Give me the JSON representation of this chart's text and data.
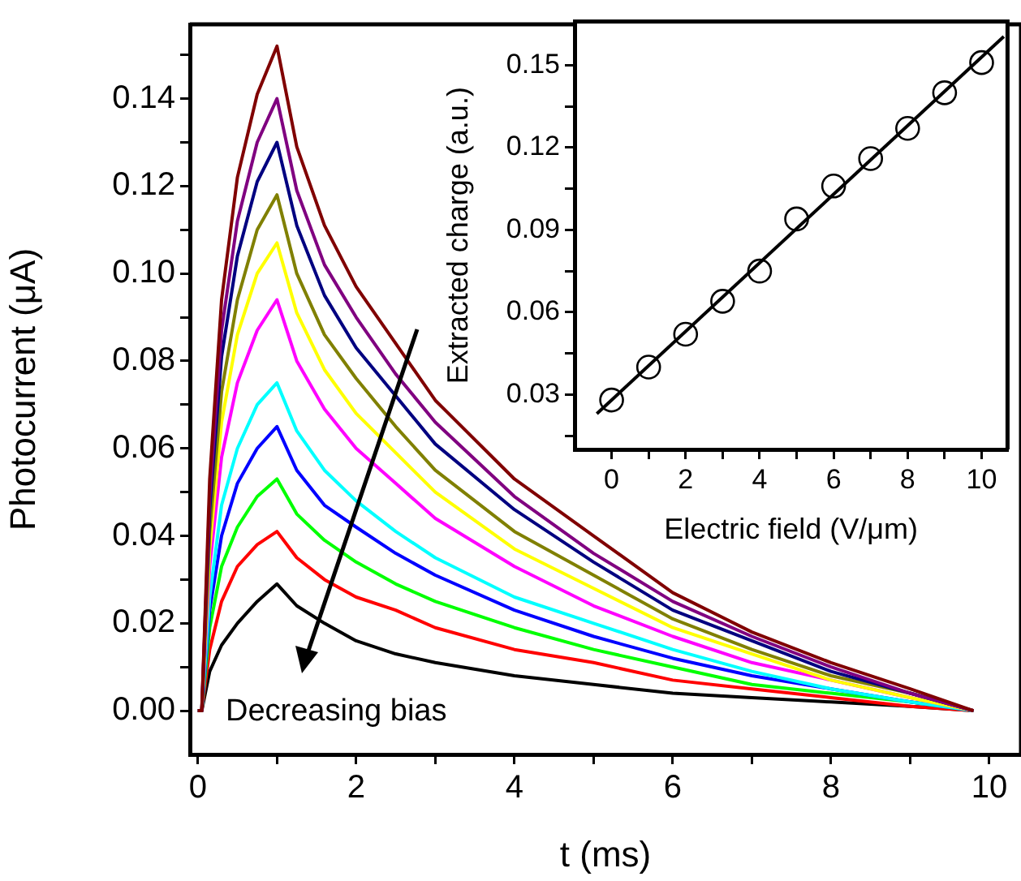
{
  "chart_data": [
    {
      "type": "line",
      "xlabel": "t (ms)",
      "ylabel": "Photocurrent (μA)",
      "annotations": [
        "Decreasing bias"
      ],
      "grid": false,
      "legend": false,
      "marker": "none",
      "xlim": [
        -0.1,
        10.4
      ],
      "xticks": [
        0,
        {
          "value": 1,
          "label": null
        },
        2,
        {
          "value": 3,
          "label": null
        },
        4,
        {
          "value": 5,
          "label": null
        },
        6,
        {
          "value": 7,
          "label": null
        },
        8,
        {
          "value": 9,
          "label": null
        },
        10
      ],
      "ylim": [
        -0.01,
        0.157
      ],
      "yticks": [
        {
          "value": 0,
          "label": "0.00"
        },
        {
          "value": 0.01,
          "label": null
        },
        {
          "value": 0.02,
          "label": "0.02"
        },
        {
          "value": 0.03,
          "label": null
        },
        {
          "value": 0.04,
          "label": "0.04"
        },
        {
          "value": 0.05,
          "label": null
        },
        {
          "value": 0.06,
          "label": "0.06"
        },
        {
          "value": 0.07,
          "label": null
        },
        {
          "value": 0.08,
          "label": "0.08"
        },
        {
          "value": 0.09,
          "label": null
        },
        {
          "value": 0.1,
          "label": "0.10"
        },
        {
          "value": 0.11,
          "label": null
        },
        {
          "value": 0.12,
          "label": "0.12"
        },
        {
          "value": 0.13,
          "label": null
        },
        {
          "value": 0.14,
          "label": "0.14"
        },
        {
          "value": 0.15,
          "label": null
        }
      ],
      "x": [
        0,
        0.05,
        0.15,
        0.3,
        0.5,
        0.75,
        1,
        1.25,
        1.6,
        2,
        2.5,
        3,
        4,
        5,
        6,
        7,
        8,
        9,
        9.8
      ],
      "series": [
        {
          "color": "#800000",
          "values": [
            0,
            0,
            0.053,
            0.094,
            0.122,
            0.141,
            0.152,
            0.129,
            0.111,
            0.097,
            0.084,
            0.071,
            0.053,
            0.04,
            0.027,
            0.018,
            0.011,
            0.005,
            0
          ]
        },
        {
          "color": "#800080",
          "values": [
            0,
            0,
            0.049,
            0.087,
            0.112,
            0.13,
            0.14,
            0.119,
            0.102,
            0.09,
            0.077,
            0.066,
            0.049,
            0.036,
            0.025,
            0.017,
            0.01,
            0.004,
            0
          ]
        },
        {
          "color": "#000080",
          "values": [
            0,
            0,
            0.046,
            0.081,
            0.104,
            0.121,
            0.13,
            0.111,
            0.095,
            0.083,
            0.072,
            0.061,
            0.046,
            0.034,
            0.023,
            0.016,
            0.009,
            0.004,
            0
          ]
        },
        {
          "color": "#808000",
          "values": [
            0,
            0,
            0.041,
            0.073,
            0.094,
            0.11,
            0.118,
            0.1,
            0.086,
            0.076,
            0.065,
            0.055,
            0.041,
            0.031,
            0.021,
            0.014,
            0.008,
            0.004,
            0
          ]
        },
        {
          "color": "#ffff00",
          "values": [
            0,
            0,
            0.037,
            0.066,
            0.086,
            0.1,
            0.107,
            0.091,
            0.078,
            0.068,
            0.059,
            0.05,
            0.037,
            0.028,
            0.019,
            0.013,
            0.007,
            0.003,
            0
          ]
        },
        {
          "color": "#ff00ff",
          "values": [
            0,
            0,
            0.033,
            0.058,
            0.075,
            0.087,
            0.094,
            0.08,
            0.069,
            0.06,
            0.052,
            0.044,
            0.033,
            0.024,
            0.017,
            0.011,
            0.007,
            0.003,
            0
          ]
        },
        {
          "color": "#00ffff",
          "values": [
            0,
            0,
            0.026,
            0.047,
            0.06,
            0.07,
            0.075,
            0.064,
            0.055,
            0.048,
            0.041,
            0.035,
            0.026,
            0.02,
            0.014,
            0.009,
            0.005,
            0.002,
            0
          ]
        },
        {
          "color": "#0000ff",
          "values": [
            0,
            0,
            0.023,
            0.04,
            0.052,
            0.06,
            0.065,
            0.055,
            0.047,
            0.042,
            0.036,
            0.031,
            0.023,
            0.017,
            0.012,
            0.008,
            0.005,
            0.002,
            0
          ]
        },
        {
          "color": "#00ff00",
          "values": [
            0,
            0,
            0.019,
            0.033,
            0.042,
            0.049,
            0.053,
            0.045,
            0.039,
            0.034,
            0.029,
            0.025,
            0.019,
            0.014,
            0.01,
            0.006,
            0.004,
            0.002,
            0
          ]
        },
        {
          "color": "#ff0000",
          "values": [
            0,
            0,
            0.014,
            0.025,
            0.033,
            0.038,
            0.041,
            0.035,
            0.03,
            0.026,
            0.023,
            0.019,
            0.014,
            0.011,
            0.007,
            0.005,
            0.003,
            0.001,
            0
          ]
        },
        {
          "color": "#000000",
          "values": [
            0,
            0,
            0.009,
            0.015,
            0.02,
            0.025,
            0.029,
            0.024,
            0.02,
            0.016,
            0.013,
            0.011,
            0.008,
            0.006,
            0.004,
            0.003,
            0.002,
            0.001,
            0
          ]
        }
      ]
    },
    {
      "type": "scatter",
      "xlabel": "Electric field (V/μm)",
      "ylabel": "Extracted charge (a.u.)",
      "grid": false,
      "legend": false,
      "marker": "circle",
      "xlim": [
        -1,
        10.7
      ],
      "xticks": [
        0,
        {
          "value": 1,
          "label": null
        },
        2,
        {
          "value": 3,
          "label": null
        },
        4,
        {
          "value": 5,
          "label": null
        },
        6,
        {
          "value": 7,
          "label": null
        },
        8,
        {
          "value": 9,
          "label": null
        },
        10
      ],
      "ylim": [
        0.01,
        0.166
      ],
      "yticks": [
        {
          "value": 0.015,
          "label": null
        },
        0.03,
        {
          "value": 0.045,
          "label": null
        },
        0.06,
        {
          "value": 0.075,
          "label": null
        },
        0.09,
        {
          "value": 0.105,
          "label": null
        },
        0.12,
        {
          "value": 0.135,
          "label": null
        },
        0.15
      ],
      "x": [
        0,
        1,
        2,
        3,
        4,
        5,
        6,
        7,
        8,
        9,
        10
      ],
      "series": [
        {
          "color": "#000000",
          "values": [
            0.028,
            0.04,
            0.052,
            0.064,
            0.075,
            0.094,
            0.106,
            0.116,
            0.127,
            0.14,
            0.151
          ]
        },
        {
          "type": "line",
          "marker": "none",
          "color": "#000000",
          "x": [
            -0.4,
            10.6
          ],
          "values": [
            0.023,
            0.1605
          ]
        }
      ]
    }
  ]
}
